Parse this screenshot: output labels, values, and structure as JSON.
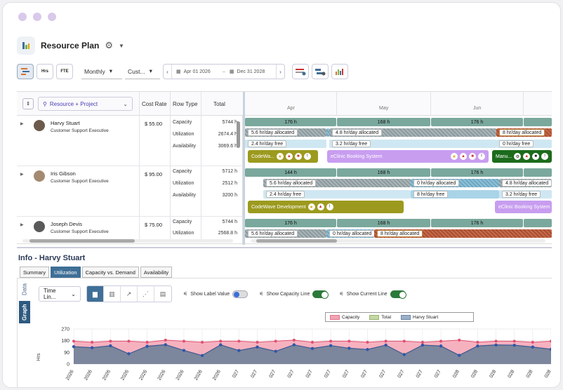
{
  "page": {
    "title": "Resource Plan"
  },
  "toolbar": {
    "view_buttons": [
      {
        "label": ""
      },
      {
        "label": "Hrs"
      },
      {
        "label": "FTE"
      }
    ],
    "period": "Monthly",
    "range_mode": "Cust...",
    "date_from": "Apr 01 2026",
    "date_to": "Dec 31 2028",
    "date_sep": "–"
  },
  "grid": {
    "group_by": "Resource + Project",
    "columns": {
      "cost_rate": "Cost Rate",
      "row_type": "Row Type",
      "total": "Total"
    },
    "months": [
      "Apr",
      "May",
      "Jun"
    ],
    "resources": [
      {
        "name": "Harvy Stuart",
        "role": "Customer Support Executive",
        "cost_rate": "$ 55.00",
        "rows": [
          {
            "type": "Capacity",
            "total": "5744 h"
          },
          {
            "type": "Utilization",
            "total": "2674.4 h"
          },
          {
            "type": "Availability",
            "total": "3069.6 h"
          }
        ]
      },
      {
        "name": "Iris Gibson",
        "role": "Customer Support Executive",
        "cost_rate": "$ 95.00",
        "rows": [
          {
            "type": "Capacity",
            "total": "5712 h"
          },
          {
            "type": "Utilization",
            "total": "2512 h"
          },
          {
            "type": "Availability",
            "total": "3200 h"
          }
        ]
      },
      {
        "name": "Joseph Devis",
        "role": "Customer Support Executive",
        "cost_rate": "$ 75.00",
        "rows": [
          {
            "type": "Capacity",
            "total": "5744 h"
          },
          {
            "type": "Utilization",
            "total": "2568.8 h"
          }
        ]
      }
    ],
    "timeline": {
      "r1": {
        "cap": [
          "176 h",
          "168 h",
          "176 h"
        ],
        "util": [
          "5.6 hr/day allocated",
          "4.8 hr/day allocated",
          "8 hr/day allocated"
        ],
        "avail": [
          "2.4 hr/day free",
          "3.2 hr/day free",
          "0 hr/day free"
        ],
        "projects": [
          "CodeWa...",
          "eClinic Booking System",
          "Manu..."
        ]
      },
      "r2": {
        "cap": [
          "144 h",
          "168 h",
          "176 h"
        ],
        "util": [
          "5.6 hr/day allocated",
          "0 hr/day allocated",
          "4.8 hr/day allocated"
        ],
        "avail": [
          "2.4 hr/day free",
          "8 hr/day free",
          "3.2 hr/day free"
        ],
        "projects": [
          "CodeWave Development",
          "eClinic Booking System"
        ]
      },
      "r3": {
        "cap": [
          "176 h",
          "168 h",
          "176 h"
        ],
        "util": [
          "5.6 hr/day allocated",
          "0 hr/day allocated",
          "8 hr/day allocated"
        ]
      }
    }
  },
  "info": {
    "title": "Info - Harvy Stuart",
    "tabs": [
      "Summary",
      "Utilization",
      "Capacity vs. Demand",
      "Availability"
    ],
    "side_tabs": [
      "Data",
      "Graph"
    ],
    "time_select": "Time Lin...",
    "toggles": [
      "Show Label Value",
      "Show Capacity Line",
      "Show Current Line"
    ],
    "toggle_states": [
      false,
      true,
      true
    ]
  },
  "colors": {
    "capacity": "#f4a3b4",
    "total": "#c5d8a4",
    "harvy": "#9bb0c8"
  },
  "chart_data": {
    "type": "area",
    "ylabel": "Hrs",
    "yticks": [
      0,
      90,
      180,
      270
    ],
    "ylim": [
      0,
      270
    ],
    "legend": [
      "Capacity",
      "Total",
      "Harvy Stuart"
    ],
    "legend_position": "top",
    "x_labels": [
      "2026",
      "2026",
      "2026",
      "2026",
      "2026",
      "2026",
      "2026",
      "2026",
      "2026",
      "027",
      "027",
      "027",
      "027",
      "027",
      "027",
      "027",
      "027",
      "027",
      "027",
      "027",
      "027",
      "028",
      "028",
      "028",
      "028",
      "028",
      "028"
    ],
    "series": [
      {
        "name": "Capacity",
        "values": [
          176,
          168,
          176,
          176,
          168,
          184,
          176,
          168,
          176,
          176,
          168,
          176,
          184,
          168,
          176,
          176,
          168,
          176,
          176,
          168,
          176,
          184,
          168,
          176,
          176,
          168,
          176
        ]
      },
      {
        "name": "Harvy Stuart",
        "values": [
          134,
          126,
          141,
          79,
          137,
          149,
          105,
          66,
          148,
          104,
          131,
          98,
          148,
          120,
          142,
          122,
          112,
          146,
          73,
          146,
          139,
          67,
          139,
          147,
          145,
          131,
          114
        ]
      }
    ]
  }
}
